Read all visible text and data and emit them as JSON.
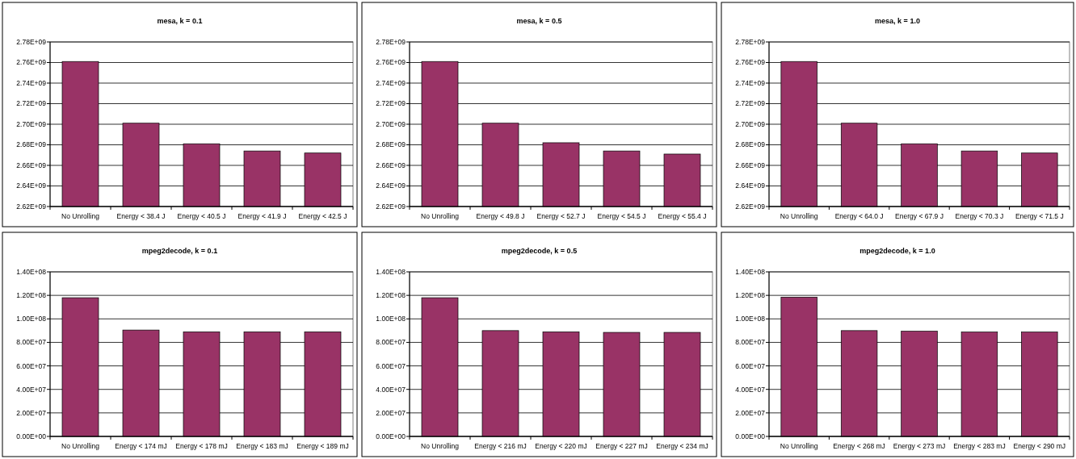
{
  "chart_data": [
    {
      "type": "bar",
      "title": "mesa, k = 0.1",
      "categories": [
        "No Unrolling",
        "Energy < 38.4 J",
        "Energy < 40.5 J",
        "Energy < 41.9 J",
        "Energy < 42.5 J"
      ],
      "values": [
        2761000000,
        2701000000,
        2681000000,
        2674000000,
        2672000000
      ],
      "color": "#993366",
      "ylim": [
        2620000000,
        2780000000
      ],
      "yticks": [
        {
          "value": 2620000000,
          "label": "2.62E+09"
        },
        {
          "value": 2640000000,
          "label": "2.64E+09"
        },
        {
          "value": 2660000000,
          "label": "2.66E+09"
        },
        {
          "value": 2680000000,
          "label": "2.68E+09"
        },
        {
          "value": 2700000000,
          "label": "2.70E+09"
        },
        {
          "value": 2720000000,
          "label": "2.72E+09"
        },
        {
          "value": 2740000000,
          "label": "2.74E+09"
        },
        {
          "value": 2760000000,
          "label": "2.76E+09"
        },
        {
          "value": 2780000000,
          "label": "2.78E+09"
        }
      ],
      "grid": "y"
    },
    {
      "type": "bar",
      "title": "mesa, k = 0.5",
      "categories": [
        "No Unrolling",
        "Energy < 49.8 J",
        "Energy < 52.7 J",
        "Energy < 54.5 J",
        "Energy < 55.4 J"
      ],
      "values": [
        2761000000,
        2701000000,
        2682000000,
        2674000000,
        2671000000
      ],
      "color": "#993366",
      "ylim": [
        2620000000,
        2780000000
      ],
      "yticks": [
        {
          "value": 2620000000,
          "label": "2.62E+09"
        },
        {
          "value": 2640000000,
          "label": "2.64E+09"
        },
        {
          "value": 2660000000,
          "label": "2.66E+09"
        },
        {
          "value": 2680000000,
          "label": "2.68E+09"
        },
        {
          "value": 2700000000,
          "label": "2.70E+09"
        },
        {
          "value": 2720000000,
          "label": "2.72E+09"
        },
        {
          "value": 2740000000,
          "label": "2.74E+09"
        },
        {
          "value": 2760000000,
          "label": "2.76E+09"
        },
        {
          "value": 2780000000,
          "label": "2.78E+09"
        }
      ],
      "grid": "y"
    },
    {
      "type": "bar",
      "title": "mesa, k = 1.0",
      "categories": [
        "No Unrolling",
        "Energy < 64.0 J",
        "Energy < 67.9 J",
        "Energy < 70.3 J",
        "Energy < 71.5 J"
      ],
      "values": [
        2761000000,
        2701000000,
        2681000000,
        2674000000,
        2672000000
      ],
      "color": "#993366",
      "ylim": [
        2620000000,
        2780000000
      ],
      "yticks": [
        {
          "value": 2620000000,
          "label": "2.62E+09"
        },
        {
          "value": 2640000000,
          "label": "2.64E+09"
        },
        {
          "value": 2660000000,
          "label": "2.66E+09"
        },
        {
          "value": 2680000000,
          "label": "2.68E+09"
        },
        {
          "value": 2700000000,
          "label": "2.70E+09"
        },
        {
          "value": 2720000000,
          "label": "2.72E+09"
        },
        {
          "value": 2740000000,
          "label": "2.74E+09"
        },
        {
          "value": 2760000000,
          "label": "2.76E+09"
        },
        {
          "value": 2780000000,
          "label": "2.78E+09"
        }
      ],
      "grid": "y"
    },
    {
      "type": "bar",
      "title": "mpeg2decode, k = 0.1",
      "categories": [
        "No Unrolling",
        "Energy < 174 mJ",
        "Energy < 178 mJ",
        "Energy < 183 mJ",
        "Energy < 189 mJ"
      ],
      "values": [
        118000000,
        90500000,
        89000000,
        89000000,
        89000000
      ],
      "color": "#993366",
      "ylim": [
        0,
        140000000
      ],
      "yticks": [
        {
          "value": 0,
          "label": "0.00E+00"
        },
        {
          "value": 20000000,
          "label": "2.00E+07"
        },
        {
          "value": 40000000,
          "label": "4.00E+07"
        },
        {
          "value": 60000000,
          "label": "6.00E+07"
        },
        {
          "value": 80000000,
          "label": "8.00E+07"
        },
        {
          "value": 100000000,
          "label": "1.00E+08"
        },
        {
          "value": 120000000,
          "label": "1.20E+08"
        },
        {
          "value": 140000000,
          "label": "1.40E+08"
        }
      ],
      "grid": "y"
    },
    {
      "type": "bar",
      "title": "mpeg2decode, k = 0.5",
      "categories": [
        "No Unrolling",
        "Energy < 216 mJ",
        "Energy < 220 mJ",
        "Energy < 227 mJ",
        "Energy < 234 mJ"
      ],
      "values": [
        118000000,
        90000000,
        89000000,
        88500000,
        88500000
      ],
      "color": "#993366",
      "ylim": [
        0,
        140000000
      ],
      "yticks": [
        {
          "value": 0,
          "label": "0.00E+00"
        },
        {
          "value": 20000000,
          "label": "2.00E+07"
        },
        {
          "value": 40000000,
          "label": "4.00E+07"
        },
        {
          "value": 60000000,
          "label": "6.00E+07"
        },
        {
          "value": 80000000,
          "label": "8.00E+07"
        },
        {
          "value": 100000000,
          "label": "1.00E+08"
        },
        {
          "value": 120000000,
          "label": "1.20E+08"
        },
        {
          "value": 140000000,
          "label": "1.40E+08"
        }
      ],
      "grid": "y"
    },
    {
      "type": "bar",
      "title": "mpeg2decode, k = 1.0",
      "categories": [
        "No Unrolling",
        "Energy < 268 mJ",
        "Energy < 273 mJ",
        "Energy < 283 mJ",
        "Energy < 290 mJ"
      ],
      "values": [
        118500000,
        90000000,
        89500000,
        88800000,
        88800000
      ],
      "color": "#993366",
      "ylim": [
        0,
        140000000
      ],
      "yticks": [
        {
          "value": 0,
          "label": "0.00E+00"
        },
        {
          "value": 20000000,
          "label": "2.00E+07"
        },
        {
          "value": 40000000,
          "label": "4.00E+07"
        },
        {
          "value": 60000000,
          "label": "6.00E+07"
        },
        {
          "value": 80000000,
          "label": "8.00E+07"
        },
        {
          "value": 100000000,
          "label": "1.00E+08"
        },
        {
          "value": 120000000,
          "label": "1.20E+08"
        },
        {
          "value": 140000000,
          "label": "1.40E+08"
        }
      ],
      "grid": "y"
    }
  ]
}
